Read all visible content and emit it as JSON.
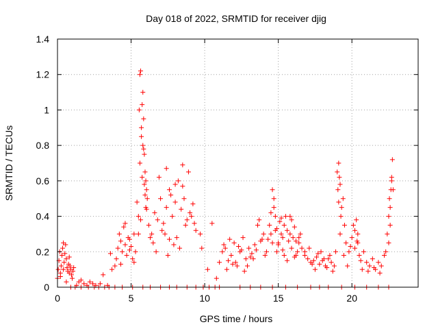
{
  "chart_data": {
    "type": "scatter",
    "title": "Day 018 of 2022, SRMTID for receiver djig",
    "xlabel": "GPS time / hours",
    "ylabel": "SRMTID / TECUs",
    "xlim": [
      0,
      24.5
    ],
    "ylim": [
      0,
      1.4
    ],
    "x_ticks": [
      0,
      5,
      10,
      15,
      20
    ],
    "y_ticks": [
      0,
      0.2,
      0.4,
      0.6,
      0.8,
      1,
      1.2,
      1.4
    ],
    "x_tick_labels": [
      "0",
      "5",
      "10",
      "15",
      "20"
    ],
    "y_tick_labels": [
      "0",
      "0.2",
      "0.4",
      "0.6",
      "0.8",
      "1",
      "1.2",
      "1.4"
    ],
    "grid": true,
    "marker": "+",
    "color": "#ff0000",
    "series": [
      {
        "name": "SRMTID",
        "x": [
          0.0,
          0.05,
          0.1,
          0.15,
          0.2,
          0.25,
          0.3,
          0.35,
          0.4,
          0.45,
          0.5,
          0.55,
          0.6,
          0.65,
          0.7,
          0.75,
          0.8,
          0.85,
          0.9,
          0.95,
          1.0,
          1.05,
          1.1,
          0.2,
          0.4,
          0.6,
          0.8,
          1.3,
          1.45,
          1.6,
          1.8,
          2.0,
          2.2,
          2.4,
          2.6,
          2.9,
          3.1,
          3.4,
          3.6,
          3.7,
          3.9,
          4.0,
          4.1,
          4.2,
          4.3,
          4.4,
          4.5,
          4.6,
          4.7,
          4.8,
          4.9,
          5.0,
          5.1,
          5.2,
          5.3,
          4.3,
          4.6,
          4.9,
          5.2,
          5.4,
          5.5,
          5.55,
          5.6,
          5.65,
          5.7,
          5.75,
          5.8,
          5.85,
          5.9,
          5.95,
          6.0,
          6.05,
          6.1,
          5.6,
          5.7,
          5.8,
          5.9,
          6.0,
          5.5,
          5.65,
          5.75,
          5.85,
          5.95,
          6.05,
          6.2,
          6.4,
          6.6,
          6.8,
          7.0,
          7.2,
          7.4,
          7.6,
          7.8,
          8.0,
          8.2,
          8.4,
          8.6,
          8.8,
          9.0,
          9.2,
          9.4,
          6.5,
          6.9,
          7.3,
          7.7,
          8.1,
          8.5,
          8.9,
          9.3,
          6.3,
          6.7,
          7.1,
          7.5,
          7.9,
          8.3,
          8.7,
          9.1,
          7.4,
          7.6,
          8.0,
          8.5,
          9.7,
          9.8,
          10.2,
          10.5,
          10.8,
          11.0,
          11.2,
          11.4,
          11.6,
          11.8,
          12.0,
          12.2,
          12.4,
          12.6,
          12.8,
          13.0,
          13.2,
          13.4,
          13.6,
          13.8,
          14.0,
          14.2,
          11.5,
          11.9,
          12.3,
          12.7,
          13.1,
          13.5,
          13.9,
          11.3,
          11.7,
          12.1,
          12.5,
          12.9,
          13.3,
          13.7,
          14.1,
          14.3,
          14.4,
          14.5,
          14.6,
          14.7,
          14.8,
          14.9,
          15.0,
          15.1,
          15.2,
          15.3,
          15.4,
          15.5,
          15.6,
          15.7,
          15.8,
          15.9,
          16.0,
          16.1,
          16.2,
          16.3,
          16.4,
          16.5,
          16.6,
          16.8,
          14.5,
          14.7,
          14.9,
          15.3,
          15.6,
          15.9,
          16.2,
          14.6,
          14.8,
          15.0,
          15.2,
          15.4,
          15.8,
          16.1,
          16.4,
          16.8,
          17.0,
          17.2,
          17.4,
          17.6,
          17.8,
          18.0,
          18.2,
          18.4,
          18.6,
          18.8,
          17.1,
          17.5,
          17.9,
          18.3,
          18.7,
          17.3,
          17.7,
          18.1,
          18.5,
          18.9,
          19.0,
          19.1,
          19.2,
          19.3,
          19.4,
          19.5,
          19.6,
          19.8,
          20.0,
          20.1,
          20.2,
          20.3,
          20.4,
          20.5,
          20.6,
          20.8,
          21.0,
          21.2,
          21.4,
          21.6,
          21.8,
          22.0,
          22.2,
          19.05,
          19.15,
          19.25,
          19.45,
          19.7,
          19.9,
          20.35,
          20.7,
          21.1,
          21.5,
          21.9,
          19.1,
          19.2,
          20.2,
          20.4,
          22.3,
          22.4,
          22.5,
          22.55,
          22.6,
          22.65,
          22.7,
          22.75,
          22.8,
          22.5,
          22.6,
          22.7,
          0.9,
          1.2,
          1.6,
          2.1,
          2.5,
          2.8,
          3.2,
          3.5,
          3.9,
          4.4,
          5.1,
          5.8,
          6.3,
          7.0,
          7.6,
          8.1,
          8.8,
          9.4,
          9.9,
          10.3,
          10.7,
          11.0,
          12.4,
          13.1,
          13.8,
          14.6,
          15.5,
          16.3,
          17.2,
          17.8,
          18.4,
          19.3,
          20.2,
          21.0,
          21.8,
          22.5
        ],
        "y": [
          0.05,
          0.1,
          0.15,
          0.2,
          0.08,
          0.12,
          0.18,
          0.22,
          0.1,
          0.14,
          0.19,
          0.24,
          0.16,
          0.11,
          0.09,
          0.13,
          0.08,
          0.12,
          0.1,
          0.07,
          0.05,
          0.09,
          0.11,
          0.06,
          0.25,
          0.03,
          0.17,
          0.01,
          0.03,
          0.04,
          0.02,
          0.01,
          0.03,
          0.02,
          0.01,
          0.02,
          0.07,
          0.01,
          0.19,
          0.1,
          0.12,
          0.16,
          0.22,
          0.3,
          0.26,
          0.2,
          0.34,
          0.24,
          0.18,
          0.28,
          0.21,
          0.23,
          0.16,
          0.3,
          0.2,
          0.13,
          0.36,
          0.27,
          0.14,
          0.48,
          0.3,
          1.0,
          1.2,
          1.22,
          0.9,
          1.03,
          0.8,
          0.95,
          0.75,
          0.65,
          0.6,
          0.55,
          0.5,
          0.7,
          0.85,
          1.1,
          0.58,
          0.45,
          0.4,
          0.38,
          0.62,
          0.78,
          0.52,
          0.44,
          0.35,
          0.3,
          0.42,
          0.38,
          0.5,
          0.36,
          0.45,
          0.55,
          0.4,
          0.48,
          0.6,
          0.44,
          0.5,
          0.38,
          0.42,
          0.47,
          0.32,
          0.25,
          0.62,
          0.3,
          0.52,
          0.28,
          0.57,
          0.65,
          0.36,
          0.28,
          0.2,
          0.32,
          0.18,
          0.24,
          0.22,
          0.35,
          0.4,
          0.67,
          0.27,
          0.58,
          0.69,
          0.3,
          0.22,
          0.1,
          0.36,
          0.05,
          0.14,
          0.2,
          0.22,
          0.15,
          0.18,
          0.25,
          0.12,
          0.2,
          0.28,
          0.16,
          0.22,
          0.19,
          0.24,
          0.35,
          0.26,
          0.3,
          0.2,
          0.1,
          0.13,
          0.23,
          0.09,
          0.17,
          0.21,
          0.27,
          0.24,
          0.27,
          0.14,
          0.21,
          0.12,
          0.16,
          0.38,
          0.18,
          0.27,
          0.35,
          0.3,
          0.55,
          0.5,
          0.4,
          0.33,
          0.25,
          0.37,
          0.3,
          0.28,
          0.35,
          0.4,
          0.32,
          0.26,
          0.3,
          0.22,
          0.28,
          0.34,
          0.26,
          0.2,
          0.25,
          0.3,
          0.22,
          0.2,
          0.42,
          0.45,
          0.2,
          0.21,
          0.15,
          0.38,
          0.18,
          0.25,
          0.32,
          0.24,
          0.39,
          0.18,
          0.4,
          0.17,
          0.28,
          0.18,
          0.16,
          0.14,
          0.15,
          0.17,
          0.13,
          0.15,
          0.12,
          0.16,
          0.14,
          0.12,
          0.22,
          0.1,
          0.2,
          0.11,
          0.09,
          0.13,
          0.19,
          0.16,
          0.18,
          0.2,
          0.65,
          0.7,
          0.58,
          0.45,
          0.5,
          0.35,
          0.25,
          0.2,
          0.28,
          0.35,
          0.22,
          0.38,
          0.3,
          0.18,
          0.15,
          0.2,
          0.14,
          0.12,
          0.16,
          0.1,
          0.14,
          0.12,
          0.18,
          0.55,
          0.62,
          0.4,
          0.18,
          0.12,
          0.23,
          0.26,
          0.1,
          0.09,
          0.11,
          0.08,
          0.48,
          0.3,
          0.32,
          0.25,
          0.2,
          0.3,
          0.4,
          0.5,
          0.45,
          0.55,
          0.6,
          0.72,
          0.55,
          0.25,
          0.35,
          0.62,
          0,
          0,
          0,
          0,
          0,
          0,
          0,
          0,
          0,
          0,
          0,
          0,
          0,
          0,
          0,
          0,
          0,
          0,
          0,
          0,
          0,
          0,
          0,
          0,
          0,
          0,
          0,
          0,
          0,
          0,
          0,
          0,
          0,
          0,
          0,
          0
        ]
      }
    ]
  }
}
